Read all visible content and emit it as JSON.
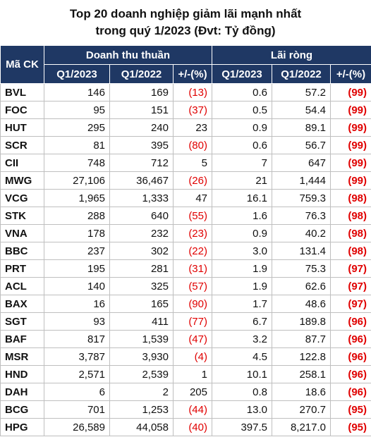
{
  "title": {
    "line1": "Top 20 doanh nghiệp giảm lãi mạnh nhất",
    "line2": "trong quý 1/2023 (Đvt: Tỷ đồng)"
  },
  "table": {
    "header": {
      "ticker": "Mã CK",
      "group1": "Doanh thu thuần",
      "group2": "Lãi ròng",
      "sub": [
        "Q1/2023",
        "Q1/2022",
        "+/-(%)",
        "Q1/2023",
        "Q1/2022",
        "+/-(%)"
      ]
    },
    "rows": [
      [
        "BVL",
        "146",
        "169",
        "(13)",
        "0.6",
        "57.2",
        "(99)"
      ],
      [
        "FOC",
        "95",
        "151",
        "(37)",
        "0.5",
        "54.4",
        "(99)"
      ],
      [
        "HUT",
        "295",
        "240",
        "23",
        "0.9",
        "89.1",
        "(99)"
      ],
      [
        "SCR",
        "81",
        "395",
        "(80)",
        "0.6",
        "56.7",
        "(99)"
      ],
      [
        "CII",
        "748",
        "712",
        "5",
        "7",
        "647",
        "(99)"
      ],
      [
        "MWG",
        "27,106",
        "36,467",
        "(26)",
        "21",
        "1,444",
        "(99)"
      ],
      [
        "VCG",
        "1,965",
        "1,333",
        "47",
        "16.1",
        "759.3",
        "(98)"
      ],
      [
        "STK",
        "288",
        "640",
        "(55)",
        "1.6",
        "76.3",
        "(98)"
      ],
      [
        "VNA",
        "178",
        "232",
        "(23)",
        "0.9",
        "40.2",
        "(98)"
      ],
      [
        "BBC",
        "237",
        "302",
        "(22)",
        "3.0",
        "131.4",
        "(98)"
      ],
      [
        "PRT",
        "195",
        "281",
        "(31)",
        "1.9",
        "75.3",
        "(97)"
      ],
      [
        "ACL",
        "140",
        "325",
        "(57)",
        "1.9",
        "62.6",
        "(97)"
      ],
      [
        "BAX",
        "16",
        "165",
        "(90)",
        "1.7",
        "48.6",
        "(97)"
      ],
      [
        "SGT",
        "93",
        "411",
        "(77)",
        "6.7",
        "189.8",
        "(96)"
      ],
      [
        "BAF",
        "817",
        "1,539",
        "(47)",
        "3.2",
        "87.7",
        "(96)"
      ],
      [
        "MSR",
        "3,787",
        "3,930",
        "(4)",
        "4.5",
        "122.8",
        "(96)"
      ],
      [
        "HND",
        "2,571",
        "2,539",
        "1",
        "10.1",
        "258.1",
        "(96)"
      ],
      [
        "DAH",
        "6",
        "2",
        "205",
        "0.8",
        "18.6",
        "(96)"
      ],
      [
        "BCG",
        "701",
        "1,253",
        "(44)",
        "13.0",
        "270.7",
        "(95)"
      ],
      [
        "HPG",
        "26,589",
        "44,058",
        "(40)",
        "397.5",
        "8,217.0",
        "(95)"
      ]
    ]
  }
}
